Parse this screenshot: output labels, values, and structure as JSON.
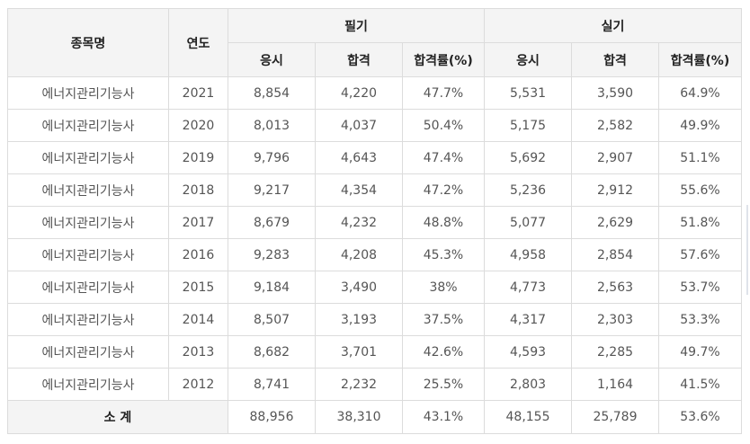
{
  "table": {
    "headers": {
      "item": "종목명",
      "year": "연도",
      "written": "필기",
      "practical": "실기",
      "applicants": "응시",
      "passed": "합격",
      "rate": "합격률(%)"
    },
    "rows": [
      {
        "name": "에너지관리기능사",
        "year": "2021",
        "w_app": "8,854",
        "w_pass": "4,220",
        "w_rate": "47.7%",
        "p_app": "5,531",
        "p_pass": "3,590",
        "p_rate": "64.9%"
      },
      {
        "name": "에너지관리기능사",
        "year": "2020",
        "w_app": "8,013",
        "w_pass": "4,037",
        "w_rate": "50.4%",
        "p_app": "5,175",
        "p_pass": "2,582",
        "p_rate": "49.9%"
      },
      {
        "name": "에너지관리기능사",
        "year": "2019",
        "w_app": "9,796",
        "w_pass": "4,643",
        "w_rate": "47.4%",
        "p_app": "5,692",
        "p_pass": "2,907",
        "p_rate": "51.1%"
      },
      {
        "name": "에너지관리기능사",
        "year": "2018",
        "w_app": "9,217",
        "w_pass": "4,354",
        "w_rate": "47.2%",
        "p_app": "5,236",
        "p_pass": "2,912",
        "p_rate": "55.6%"
      },
      {
        "name": "에너지관리기능사",
        "year": "2017",
        "w_app": "8,679",
        "w_pass": "4,232",
        "w_rate": "48.8%",
        "p_app": "5,077",
        "p_pass": "2,629",
        "p_rate": "51.8%"
      },
      {
        "name": "에너지관리기능사",
        "year": "2016",
        "w_app": "9,283",
        "w_pass": "4,208",
        "w_rate": "45.3%",
        "p_app": "4,958",
        "p_pass": "2,854",
        "p_rate": "57.6%"
      },
      {
        "name": "에너지관리기능사",
        "year": "2015",
        "w_app": "9,184",
        "w_pass": "3,490",
        "w_rate": "38%",
        "p_app": "4,773",
        "p_pass": "2,563",
        "p_rate": "53.7%"
      },
      {
        "name": "에너지관리기능사",
        "year": "2014",
        "w_app": "8,507",
        "w_pass": "3,193",
        "w_rate": "37.5%",
        "p_app": "4,317",
        "p_pass": "2,303",
        "p_rate": "53.3%"
      },
      {
        "name": "에너지관리기능사",
        "year": "2013",
        "w_app": "8,682",
        "w_pass": "3,701",
        "w_rate": "42.6%",
        "p_app": "4,593",
        "p_pass": "2,285",
        "p_rate": "49.7%"
      },
      {
        "name": "에너지관리기능사",
        "year": "2012",
        "w_app": "8,741",
        "w_pass": "2,232",
        "w_rate": "25.5%",
        "p_app": "2,803",
        "p_pass": "1,164",
        "p_rate": "41.5%"
      }
    ],
    "total": {
      "label": "소 계",
      "w_app": "88,956",
      "w_pass": "38,310",
      "w_rate": "43.1%",
      "p_app": "48,155",
      "p_pass": "25,789",
      "p_rate": "53.6%"
    }
  }
}
